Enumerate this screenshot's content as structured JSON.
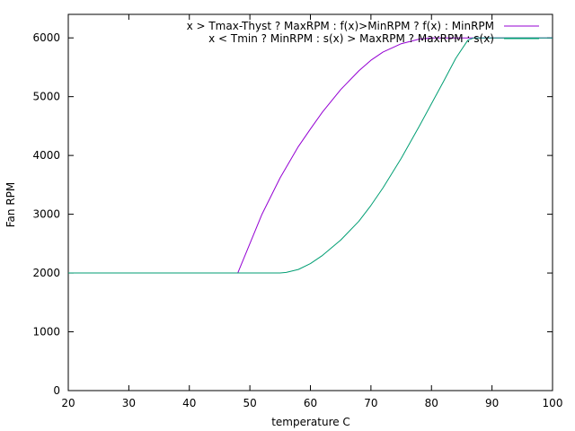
{
  "chart_data": {
    "type": "line",
    "title": "",
    "xlabel": "temperature C",
    "ylabel": "Fan RPM",
    "xlim": [
      20,
      100
    ],
    "ylim": [
      0,
      6400
    ],
    "xticks": [
      20,
      30,
      40,
      50,
      60,
      70,
      80,
      90,
      100
    ],
    "yticks": [
      0,
      1000,
      2000,
      3000,
      4000,
      5000,
      6000
    ],
    "grid": false,
    "legend_position": "top-right",
    "series": [
      {
        "name": "x > Tmax-Thyst ?  MaxRPM : f(x)>MinRPM ? f(x) : MinRPM",
        "color": "#9400d3",
        "x": [
          20,
          30,
          40,
          48,
          50,
          52,
          55,
          58,
          60,
          62,
          65,
          68,
          70,
          72,
          75,
          78,
          80,
          82,
          85,
          88,
          90,
          95,
          100
        ],
        "y": [
          2000,
          2000,
          2000,
          2000,
          2500,
          3000,
          3620,
          4150,
          4450,
          4740,
          5120,
          5440,
          5620,
          5760,
          5900,
          5980,
          6000,
          6000,
          6000,
          6000,
          6000,
          6000,
          6000
        ]
      },
      {
        "name": "x < Tmin ? MinRPM : s(x) > MaxRPM ? MaxRPM : s(x)",
        "color": "#009e73",
        "x": [
          20,
          30,
          40,
          50,
          55,
          56,
          58,
          60,
          62,
          65,
          68,
          70,
          72,
          75,
          78,
          80,
          82,
          84,
          86,
          87,
          90,
          95,
          100
        ],
        "y": [
          2000,
          2000,
          2000,
          2000,
          2000,
          2010,
          2060,
          2160,
          2300,
          2560,
          2880,
          3150,
          3450,
          3950,
          4500,
          4880,
          5260,
          5650,
          5960,
          6000,
          6000,
          6000,
          6000
        ]
      }
    ]
  }
}
